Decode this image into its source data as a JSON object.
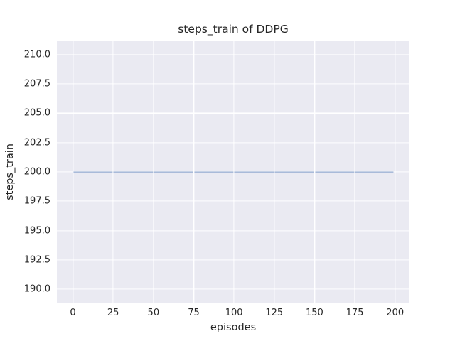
{
  "figure": {
    "background": "#ffffff"
  },
  "chart_data": {
    "type": "line",
    "title": "steps_train of DDPG",
    "xlabel": "episodes",
    "ylabel": "steps_train",
    "plot_background": "#eaeaf2",
    "grid": true,
    "grid_color": "#ffffff",
    "text_color": "#262626",
    "legend": false,
    "xlim": [
      -9.95,
      208.95
    ],
    "ylim": [
      188.85,
      211.15
    ],
    "xticks": {
      "values": [
        0,
        25,
        50,
        75,
        100,
        125,
        150,
        175,
        200
      ],
      "labels": [
        "0",
        "25",
        "50",
        "75",
        "100",
        "125",
        "150",
        "175",
        "200"
      ]
    },
    "yticks": {
      "values": [
        190.0,
        192.5,
        195.0,
        197.5,
        200.0,
        202.5,
        205.0,
        207.5,
        210.0
      ],
      "labels": [
        "190.0",
        "192.5",
        "195.0",
        "197.5",
        "200.0",
        "202.5",
        "205.0",
        "207.5",
        "210.0"
      ]
    },
    "series": [
      {
        "name": "steps_train",
        "color": "#4c72b0",
        "line_width": 1.8,
        "x": [
          0,
          199
        ],
        "y": [
          200,
          200
        ],
        "note": "constant value 200 across episodes 0-199"
      }
    ]
  }
}
